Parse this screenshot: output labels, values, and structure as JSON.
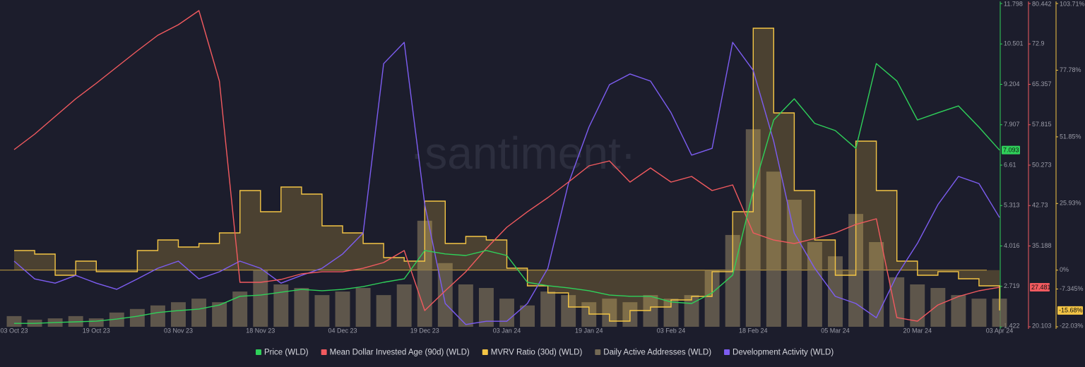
{
  "chart_data": {
    "type": "line",
    "watermark": "·santiment·",
    "categories": [
      "03 Oct 23",
      null,
      null,
      null,
      "19 Oct 23",
      null,
      null,
      null,
      "03 Nov 23",
      null,
      null,
      null,
      "18 Nov 23",
      null,
      null,
      null,
      "04 Dec 23",
      null,
      null,
      null,
      "19 Dec 23",
      null,
      null,
      null,
      "03 Jan 24",
      null,
      null,
      null,
      "19 Jan 24",
      null,
      null,
      null,
      "03 Feb 24",
      null,
      null,
      null,
      "18 Feb 24",
      null,
      null,
      null,
      "05 Mar 24",
      null,
      null,
      null,
      "20 Mar 24",
      null,
      null,
      null,
      "03 Apr 24"
    ],
    "series": [
      {
        "name": "Price (WLD)",
        "color": "#2fd15a",
        "axis": "y",
        "style": "line",
        "values": [
          1.53,
          1.53,
          1.56,
          1.58,
          1.6,
          1.67,
          1.76,
          1.88,
          1.94,
          1.99,
          2.12,
          2.4,
          2.44,
          2.53,
          2.62,
          2.58,
          2.62,
          2.71,
          2.85,
          2.96,
          3.87,
          3.76,
          3.71,
          3.87,
          3.71,
          2.85,
          2.74,
          2.67,
          2.58,
          2.44,
          2.4,
          2.4,
          2.22,
          2.17,
          2.51,
          3.08,
          5.79,
          8.06,
          8.74,
          7.95,
          7.72,
          7.15,
          9.87,
          9.31,
          8.06,
          8.29,
          8.51,
          7.83,
          7.093
        ]
      },
      {
        "name": "Mean Dollar Invested Age (90d) (WLD)",
        "color": "#f25a5f",
        "axis": "y2",
        "style": "line",
        "values": [
          53.17,
          56.07,
          59.36,
          62.65,
          65.55,
          68.58,
          71.61,
          74.51,
          76.49,
          79.12,
          65.95,
          28.4,
          28.4,
          28.93,
          29.98,
          30.37,
          30.37,
          31.03,
          32.09,
          34.33,
          23.13,
          26.82,
          30.37,
          34.72,
          38.68,
          41.57,
          44.21,
          47.11,
          50.14,
          51.06,
          47.11,
          49.74,
          47.11,
          48.16,
          45.53,
          46.58,
          37.62,
          36.3,
          35.64,
          36.57,
          37.62,
          39.2,
          40.26,
          21.81,
          21.15,
          24.18,
          25.76,
          26.82,
          27.481
        ]
      },
      {
        "name": "MVRV Ratio (30d) (WLD)",
        "color": "#f4c545",
        "axis": "y3",
        "style": "step",
        "values": [
          7.62,
          6.25,
          -1.99,
          3.5,
          -0.6,
          -0.6,
          7.62,
          11.74,
          8.99,
          10.37,
          14.48,
          30.96,
          22.72,
          32.33,
          29.58,
          17.23,
          14.48,
          10.37,
          4.88,
          3.5,
          26.84,
          10.37,
          13.11,
          11.74,
          0.76,
          -6.11,
          -8.85,
          -14.34,
          -17.09,
          -19.83,
          -15.71,
          -14.34,
          -11.59,
          -10.22,
          -0.6,
          22.72,
          94.1,
          61.16,
          30.96,
          11.74,
          -1.99,
          50.17,
          30.96,
          3.5,
          -1.99,
          -0.6,
          -3.36,
          -6.11,
          -15.68
        ],
        "value_labels": [
          null,
          null,
          null,
          null,
          null,
          null,
          null,
          null,
          null,
          null,
          null,
          null,
          null,
          null,
          null,
          null,
          null,
          null,
          null,
          null,
          null,
          null,
          null,
          null,
          null,
          null,
          null,
          null,
          null,
          null,
          null,
          null,
          null,
          null,
          null,
          null,
          null,
          null,
          null,
          null,
          null,
          null,
          null,
          null,
          null,
          null,
          null,
          null,
          "-15.68%"
        ]
      },
      {
        "name": "Daily Active Addresses (WLD)",
        "color": "#746a55",
        "axis": "y4",
        "style": "bar",
        "values": [
          3.3,
          2.2,
          2.6,
          3.3,
          2.6,
          4.4,
          5.5,
          6.6,
          7.6,
          8.7,
          7.6,
          10.9,
          17.5,
          13.1,
          12,
          9.8,
          10.9,
          12,
          9.8,
          13.1,
          32.8,
          19.7,
          13.1,
          12,
          8.7,
          6.6,
          10.9,
          9.8,
          7.6,
          8.7,
          7.6,
          9.8,
          8.7,
          9.8,
          17.5,
          28.4,
          61.1,
          48,
          39.3,
          26.2,
          21.8,
          34.9,
          26.2,
          15.3,
          13.1,
          12,
          9.8,
          8.7,
          8.7
        ]
      },
      {
        "name": "Development Activity (WLD)",
        "color": "#7d5df2",
        "axis": "y4",
        "style": "line",
        "values": [
          20.3,
          14.8,
          13.5,
          15.9,
          13.5,
          11.6,
          14.8,
          18.1,
          20.3,
          14.8,
          17,
          20.3,
          18.1,
          13.5,
          15.9,
          18.1,
          22.5,
          29,
          81.4,
          88,
          37.8,
          7.2,
          0.7,
          1.7,
          1.7,
          7.2,
          18.1,
          44.3,
          61.8,
          74.9,
          78.2,
          76,
          66.2,
          53.1,
          55.2,
          88,
          79.3,
          57.4,
          29,
          18.1,
          9.4,
          7.2,
          2.8,
          15.9,
          25.8,
          37.8,
          46.5,
          44.3,
          33.8
        ]
      }
    ],
    "ylim": [
      1.422,
      11.798
    ],
    "yticks": [
      1.422,
      2.719,
      4.016,
      5.313,
      6.61,
      7.907,
      9.204,
      10.501,
      11.798
    ],
    "y2lim": [
      20.103,
      80.442
    ],
    "y2ticks": [
      20.103,
      35.188,
      42.73,
      50.273,
      57.815,
      65.357,
      72.9,
      80.442
    ],
    "y3lim": [
      -22.03,
      103.71
    ],
    "y3ticks": [
      {
        "value": -22.03,
        "label": "-22.03%"
      },
      {
        "value": -7.345,
        "label": "-7.345%"
      },
      {
        "value": 0,
        "label": "0%"
      },
      {
        "value": 25.93,
        "label": "25.93%"
      },
      {
        "value": 51.85,
        "label": "51.85%"
      },
      {
        "value": 77.78,
        "label": "77.78%"
      },
      {
        "value": 103.71,
        "label": "103.71%"
      }
    ],
    "y4lim": [
      0,
      100
    ],
    "grid": false,
    "legend": "bottom"
  }
}
